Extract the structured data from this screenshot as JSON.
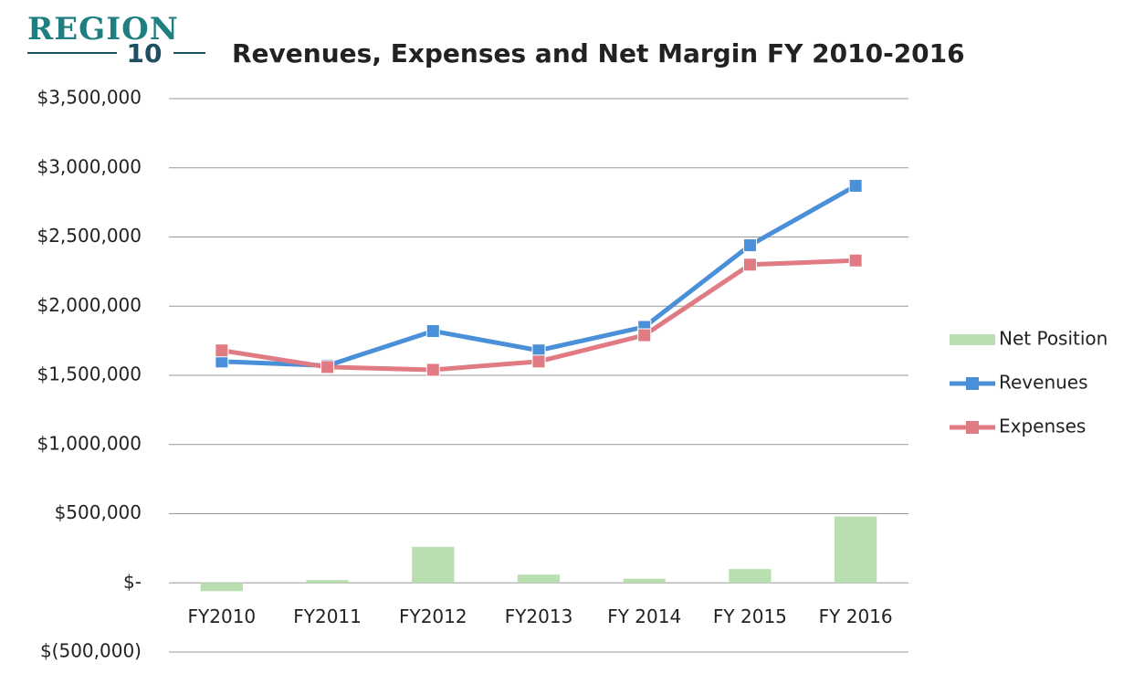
{
  "chart_data": {
    "type": "combo",
    "logo_text": "REGION",
    "logo_number": "10",
    "title": "Revenues, Expenses and Net Margin FY 2010-2016",
    "categories": [
      "FY2010",
      "FY2011",
      "FY2012",
      "FY2013",
      "FY 2014",
      "FY 2015",
      "FY 2016"
    ],
    "series": [
      {
        "name": "Net Position",
        "type": "bar",
        "color": "#b9dfb0",
        "values": [
          -60000,
          20000,
          260000,
          60000,
          30000,
          100000,
          480000
        ]
      },
      {
        "name": "Revenues",
        "type": "line",
        "color": "#4a90d9",
        "values": [
          1600000,
          1570000,
          1820000,
          1680000,
          1850000,
          2440000,
          2870000
        ]
      },
      {
        "name": "Expenses",
        "type": "line",
        "color": "#e07b84",
        "values": [
          1680000,
          1560000,
          1540000,
          1600000,
          1790000,
          2300000,
          2330000
        ]
      }
    ],
    "ylim": [
      -500000,
      3500000
    ],
    "yticks": [
      {
        "value": -500000,
        "label": "$(500,000)"
      },
      {
        "value": 0,
        "label": "$-"
      },
      {
        "value": 500000,
        "label": "$500,000"
      },
      {
        "value": 1000000,
        "label": "$1,000,000"
      },
      {
        "value": 1500000,
        "label": "$1,500,000"
      },
      {
        "value": 2000000,
        "label": "$2,000,000"
      },
      {
        "value": 2500000,
        "label": "$2,500,000"
      },
      {
        "value": 3000000,
        "label": "$3,000,000"
      },
      {
        "value": 3500000,
        "label": "$3,500,000"
      }
    ],
    "grid": true,
    "legend": "right"
  }
}
